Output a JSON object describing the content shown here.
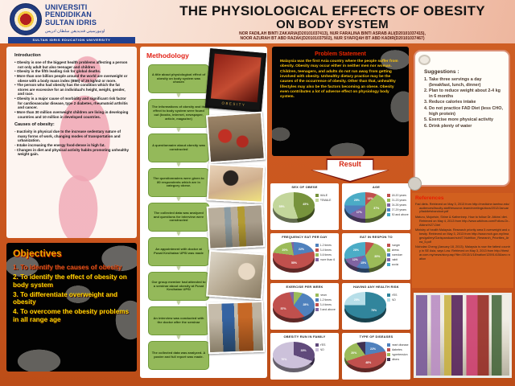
{
  "colors": {
    "poster_bg": "#ca561e",
    "header_pink": "#f7dccd",
    "method_box_green": "#94b95a",
    "heading_red": "#e22318",
    "objective_heading": "#f0a400",
    "problem_text_yellow": "#ffc60a",
    "navy": "#20408f"
  },
  "header": {
    "university_name_lines": [
      "UNIVERSITI",
      "PENDIDIKAN",
      "SULTAN IDRIS"
    ],
    "university_arabic": "اونيورسيتي فنديديقن سلطان ادريس",
    "university_subtitle": "SULTAN IDRIS EDUCATION UNIVERSITY",
    "title_line1": "THE PHYSIOLOGICAL EFFECTS OF OBESITY",
    "title_line2": "ON BODY SYSTEM",
    "authors_line1": "NOR FADILAH BINTI ZAKARIA(D20101037413), NUR FARALINA BINTI ASRAB ALI(D20101037415),",
    "authors_line2": "NOOR AZURAH BT ABD RAZAK(D20101037502), NUR SYAFIQAH BT ABD KADIR(D20101037467)"
  },
  "introduction": {
    "heading": "Introduction",
    "bullets": [
      "Obesity is one of the biggest health problems affecting a person not only adult but also teenager and children",
      "Obesity is the fifth leading risk for global deaths.",
      "More than one billion people around the world are overweight or obese with a body mass index (BMI) of 25 kg/m2 or more.",
      "The person who had obesity has the condition which the fat stores are excessive for an individual's height, weight, gender, and race.",
      "Obesity is a major cause of morbidity and significant risk factor for cardiovascular disease, type 2 diabetes, rheumatoid arthritis and cancer.",
      "More than 30 million overweight children are living in developing countries and 10 million in developed countries."
    ],
    "causes_heading": "Causes of obesity:",
    "causes": [
      "Inactivity in physical due to the increase sedentary nature of many forms of work, changing modes of transportation and urbanization.",
      "Intake increasing the energy food-dense is high fat.",
      "Changes in diet and physical activity habits promoting unhealthy weight gain."
    ]
  },
  "objectives": {
    "heading": "Objectives",
    "items": [
      {
        "text": "To identify the causes of obesity",
        "color": "#e8541a"
      },
      {
        "text": "To identify the effect of obesity on body system",
        "color": "#ffd800"
      },
      {
        "text": "To differentiate overweight and obesity",
        "color": "#ffd800"
      },
      {
        "text": "To overcome the obesity problems in all range age",
        "color": "#ffd800"
      }
    ]
  },
  "methodology": {
    "heading": "Methodology",
    "steps": [
      "A title about physiological effect of obesity on body system was chosen",
      "The informations of obesity and its effect to body system were found out (books, internet, newspaper, article, magazine)",
      "A questionnaire about obesity was constructed",
      "The questionnaires were given to 80 respondents which are in category obese.",
      "The collected data was analyzed and questions for interview were constructed",
      "An appointment with doctor at Pusat Kesihatan UPSI was made",
      "Our group member had attended to a seminar about obesity at Pusat Kesihatan UPSI",
      "An interview was conducted with the doctor after the seminar",
      "The collected data was analyzed. A poster and full report was made."
    ],
    "poster_caption": "OBESITY"
  },
  "problem_statement": {
    "heading": "Problem Statement",
    "text": "Malaysia was the first Asia country where the people suffer from obesity. Obesity may occur either in neither men nor woman. Children, teenagers, and adults do not run away from getting involved with obesity. Unhealthy dietary practice may be the causes of the occurrence of obesity. Other than that, unhealthy lifestyles may also be the factors becoming an obese. Obesity even contributes a lot of adverse effect on physiology body system."
  },
  "result_label": "Result",
  "chart_data": [
    {
      "type": "pie",
      "id": "sex-of-obese",
      "title": "SEX OF OBESE",
      "labels": [
        "MALE",
        "FEMALE"
      ],
      "values": [
        45,
        55
      ],
      "colors": [
        "#77933c",
        "#c3d69b"
      ],
      "legend_position": "right"
    },
    {
      "type": "pie",
      "id": "age",
      "title": "AGE",
      "labels": [
        "18-20 years",
        "21-23 years",
        "24-26 years",
        "27-29 years",
        "30 and above"
      ],
      "values": [
        13,
        37,
        17,
        8,
        25
      ],
      "colors": [
        "#c0504d",
        "#9bbb59",
        "#8064a2",
        "#4f81bd",
        "#4bacc6"
      ],
      "legend_position": "right"
    },
    {
      "type": "pie",
      "id": "frequency-eat-per-day",
      "title": "FREQUENCY EAT PER DAY",
      "labels": [
        "1-2 times",
        "3-4 times",
        "5-6 times",
        "more than 6"
      ],
      "values": [
        22,
        55,
        20,
        3
      ],
      "colors": [
        "#4f81bd",
        "#c0504d",
        "#9bbb59",
        "#8064a2"
      ],
      "legend_position": "right"
    },
    {
      "type": "pie",
      "id": "eat-in-respon-to",
      "title": "EAT IN RESPON TO",
      "labels": [
        "hunger",
        "stress",
        "boredom",
        "habit",
        "social"
      ],
      "values": [
        10,
        35,
        15,
        12,
        28
      ],
      "colors": [
        "#c0504d",
        "#9bbb59",
        "#4f81bd",
        "#8064a2",
        "#4bacc6"
      ],
      "legend_position": "right"
    },
    {
      "type": "pie",
      "id": "exercise-per-week",
      "title": "EXERCISE PER WEEK",
      "labels": [
        "never",
        "1-2 times",
        "3-4 times",
        "5 and above"
      ],
      "values": [
        10,
        28,
        57,
        5
      ],
      "colors": [
        "#9bbb59",
        "#4f81bd",
        "#c0504d",
        "#8064a2"
      ],
      "legend_position": "right"
    },
    {
      "type": "pie",
      "id": "having-any-health-risk",
      "title": "HAVING ANY HEALTH RISK",
      "labels": [
        "YES",
        "NO"
      ],
      "values": [
        75,
        25
      ],
      "colors": [
        "#31859c",
        "#b7dee8"
      ],
      "legend_position": "right"
    },
    {
      "type": "pie",
      "id": "obesity-run-in-family",
      "title": "OBESITY RUN IN FAMILY",
      "labels": [
        "YES",
        "NO"
      ],
      "values": [
        30,
        70
      ],
      "colors": [
        "#604a7b",
        "#ccc1da"
      ],
      "legend_position": "right"
    },
    {
      "type": "pie",
      "id": "type-of-diseases",
      "title": "TYPE OF DISEASES",
      "labels": [
        "heart disease",
        "diabetes",
        "hypertension",
        "others"
      ],
      "values": [
        22,
        48,
        20,
        10
      ],
      "colors": [
        "#4f81bd",
        "#c0504d",
        "#9bbb59",
        "#403152"
      ],
      "legend_position": "right"
    }
  ],
  "suggestions": {
    "heading": "Suggestions :",
    "items": [
      "Take three servings a day (breakfast, lunch, dinner)",
      "Plan to reduce weight about 2-4 kg in 6 months",
      "Reduce calories intake",
      "Do not practice FAD Diet (less CHO, high protein)",
      "Exercise more physical activity",
      "Drink plenty of water"
    ]
  },
  "references": {
    "heading": "References",
    "entries": [
      "Fad diets. Retrieved on May 3, 2013 from http://medicine.tamhsc.edu/audiences/faculty-staff/resource-team/meetings/docs/2012/January/faddietshandout.pdf",
      "Maturu, Mojorisin, Shine & Katherinep. How to follow Dr. Atkins' diet. Retrieved on May 4, 2013 from http://www.wikihow.com/Follow-Dr.-Atkins%27-Diet",
      "Ministry of health Malaysia. Research priority area 5 overweight and obesity. Retrieved on May 3, 2013 from http://www.moh.gov.my/images/gallery/Garispanduan/nutri/7-Nutrition_Research_Priorities_Area_5.pdf",
      "Nicholas Cheng (January 18, 2013). Malaysia is now the fattest country in SE Asia, says Low. Retrieved on May 3, 2013 from http://thestar.com.my/news/story.asp?file=/2013/1/18/nation/12591415&sec=nation"
    ]
  }
}
